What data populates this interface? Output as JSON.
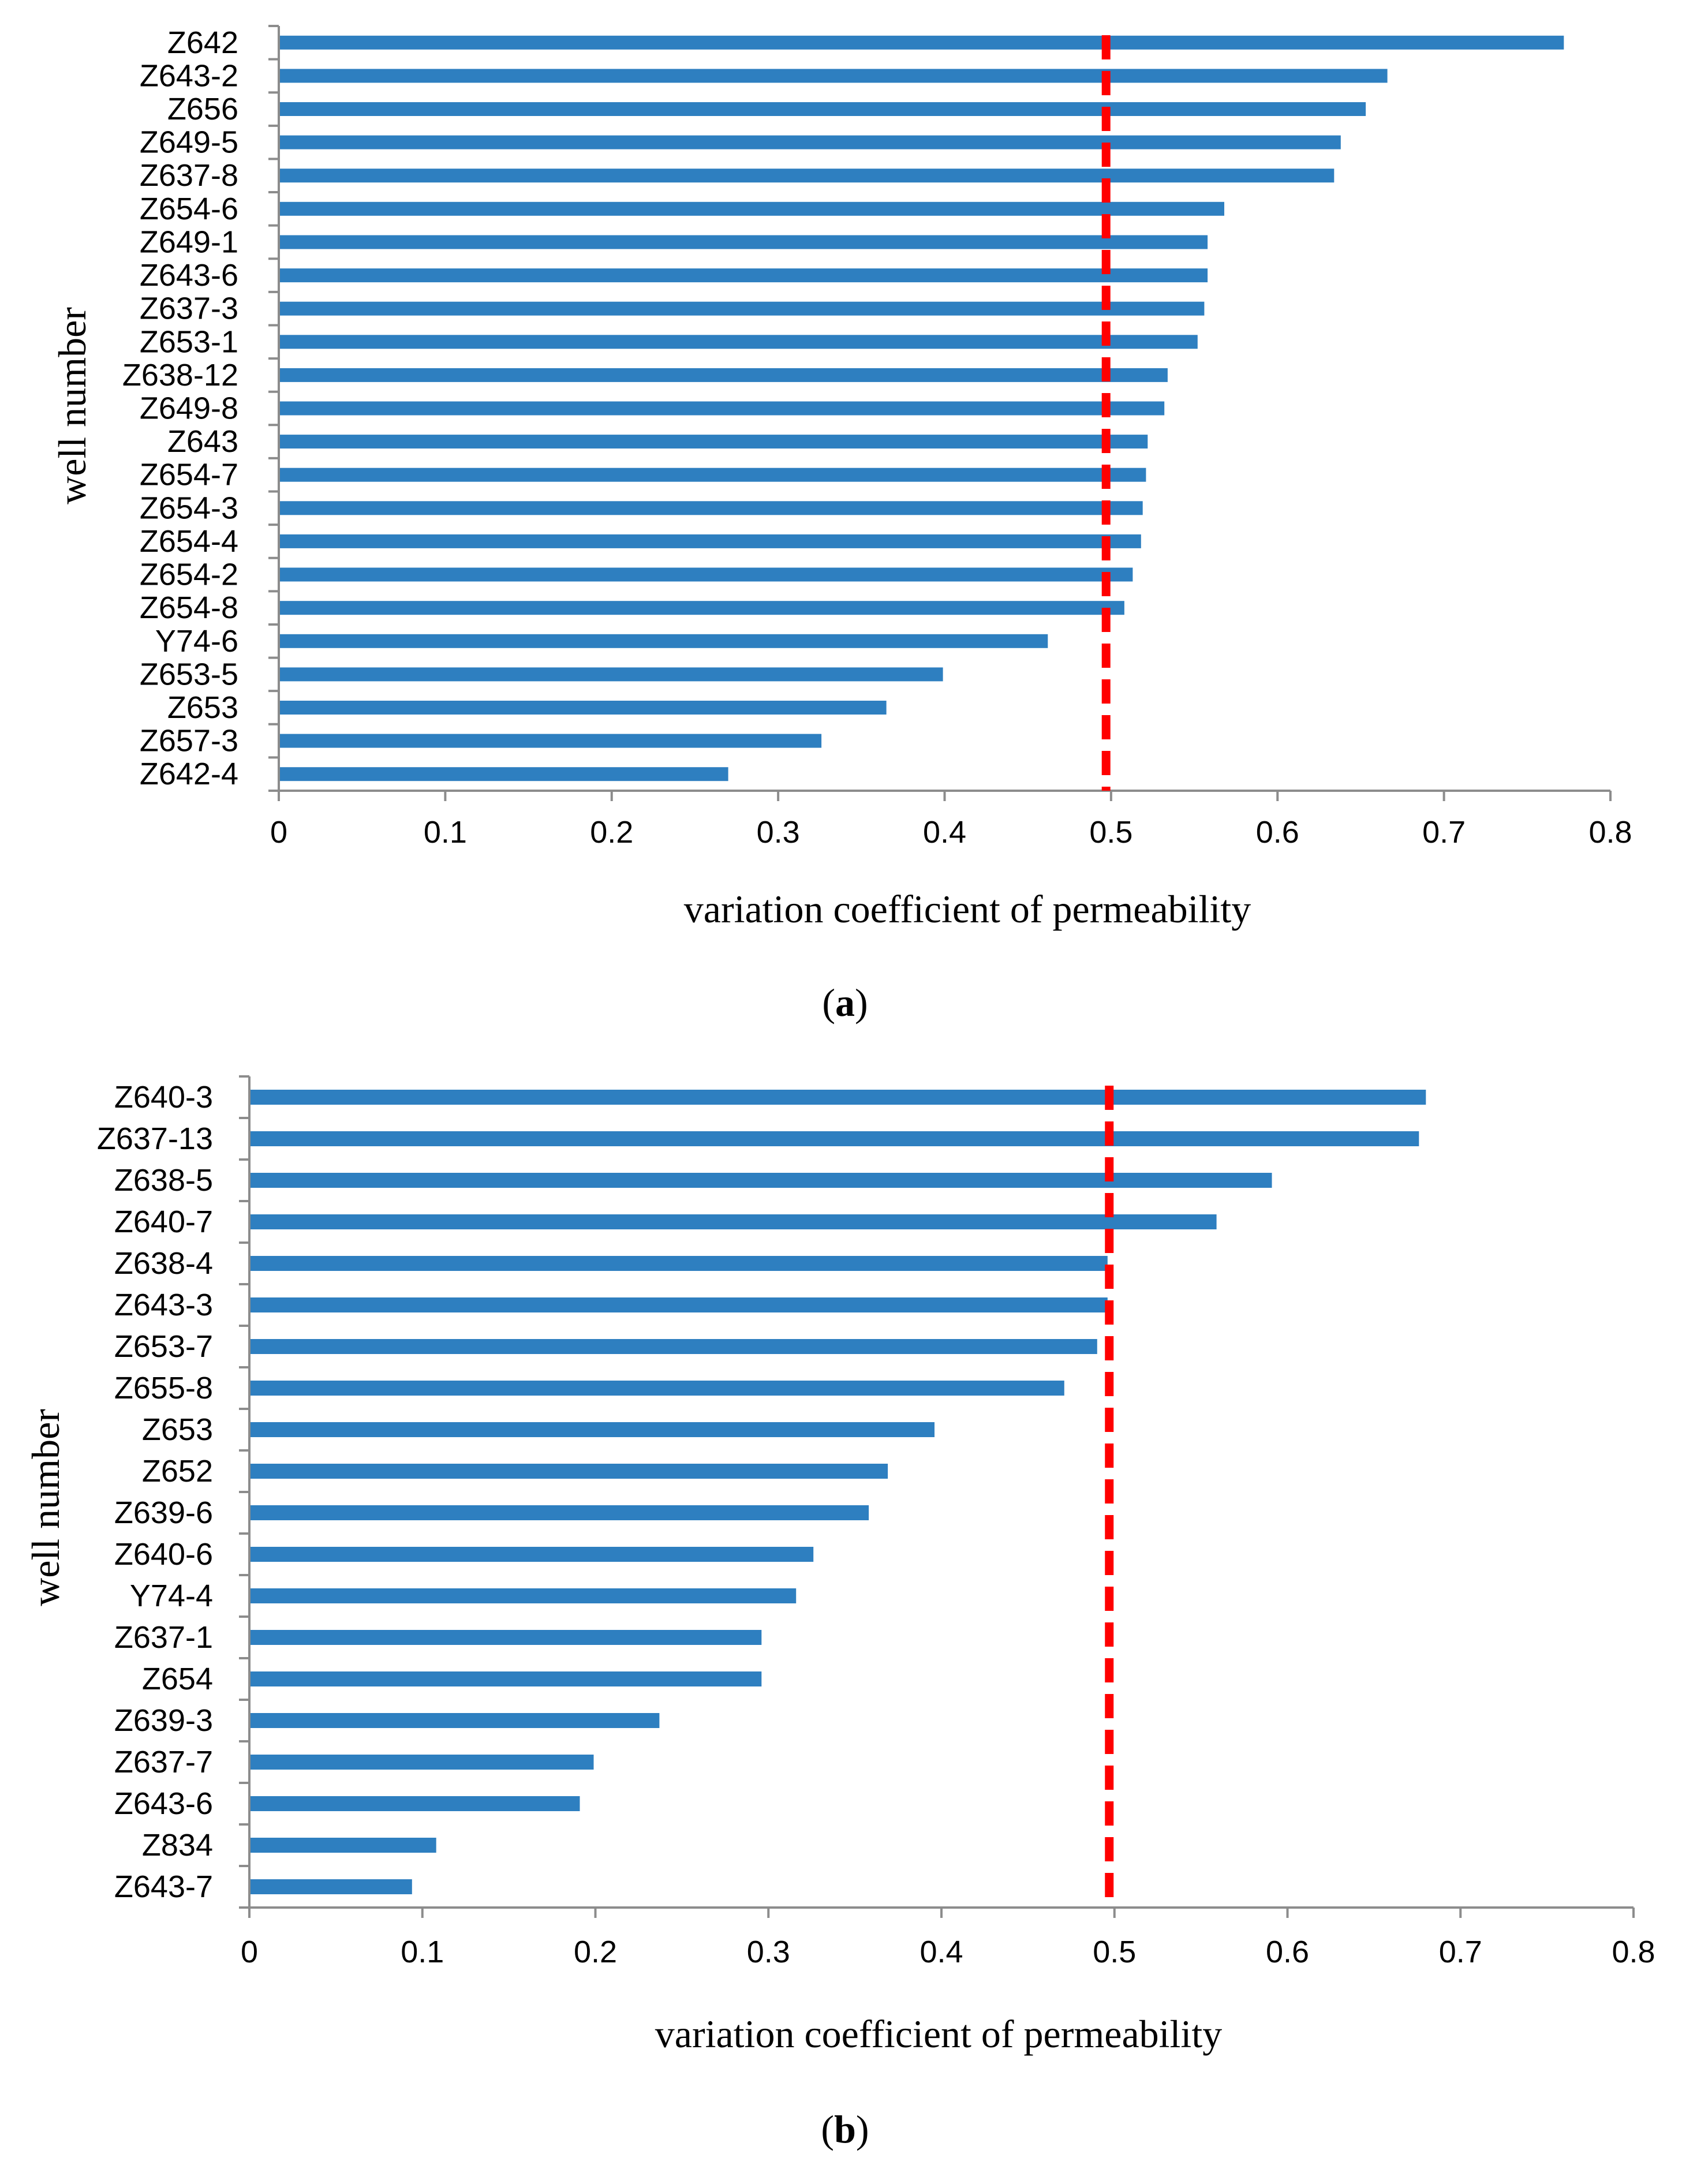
{
  "chart_data": [
    {
      "type": "bar",
      "orientation": "horizontal",
      "panel_label": "a",
      "categories": [
        "Z642",
        "Z643-2",
        "Z656",
        "Z649-5",
        "Z637-8",
        "Z654-6",
        "Z649-1",
        "Z643-6",
        "Z637-3",
        "Z653-1",
        "Z638-12",
        "Z649-8",
        "Z643",
        "Z654-7",
        "Z654-3",
        "Z654-4",
        "Z654-2",
        "Z654-8",
        "Y74-6",
        "Z653-5",
        "Z653",
        "Z657-3",
        "Z642-4"
      ],
      "values": [
        0.772,
        0.666,
        0.653,
        0.638,
        0.634,
        0.568,
        0.558,
        0.558,
        0.556,
        0.552,
        0.534,
        0.532,
        0.522,
        0.521,
        0.519,
        0.518,
        0.513,
        0.508,
        0.462,
        0.399,
        0.365,
        0.326,
        0.27
      ],
      "xlabel": "variation coefficient of permeability",
      "ylabel": "well number",
      "xlim": [
        0,
        0.8
      ],
      "xticks": [
        "0",
        "0.1",
        "0.2",
        "0.3",
        "0.4",
        "0.5",
        "0.6",
        "0.7",
        "0.8"
      ],
      "reference_line": 0.497,
      "bar_color": "#2e7fc0",
      "reference_color": "#ff0000",
      "caption_open": "(",
      "caption_letter": "a",
      "caption_close": ")"
    },
    {
      "type": "bar",
      "orientation": "horizontal",
      "panel_label": "b",
      "categories": [
        "Z640-3",
        "Z637-13",
        "Z638-5",
        "Z640-7",
        "Z638-4",
        "Z643-3",
        "Z653-7",
        "Z655-8",
        "Z653",
        "Z652",
        "Z639-6",
        "Z640-6",
        "Y74-4",
        "Z637-1",
        "Z654",
        "Z639-3",
        "Z637-7",
        "Z643-6",
        "Z834",
        "Z643-7"
      ],
      "values": [
        0.68,
        0.676,
        0.591,
        0.559,
        0.496,
        0.496,
        0.49,
        0.471,
        0.396,
        0.369,
        0.358,
        0.326,
        0.316,
        0.296,
        0.296,
        0.237,
        0.199,
        0.191,
        0.108,
        0.094
      ],
      "xlabel": "variation coefficient of permeability",
      "ylabel": "well number",
      "xlim": [
        0,
        0.8
      ],
      "xticks": [
        "0",
        "0.1",
        "0.2",
        "0.3",
        "0.4",
        "0.5",
        "0.6",
        "0.7",
        "0.8"
      ],
      "reference_line": 0.497,
      "bar_color": "#2e7fc0",
      "reference_color": "#ff0000",
      "caption_open": "(",
      "caption_letter": "b",
      "caption_close": ")"
    }
  ]
}
